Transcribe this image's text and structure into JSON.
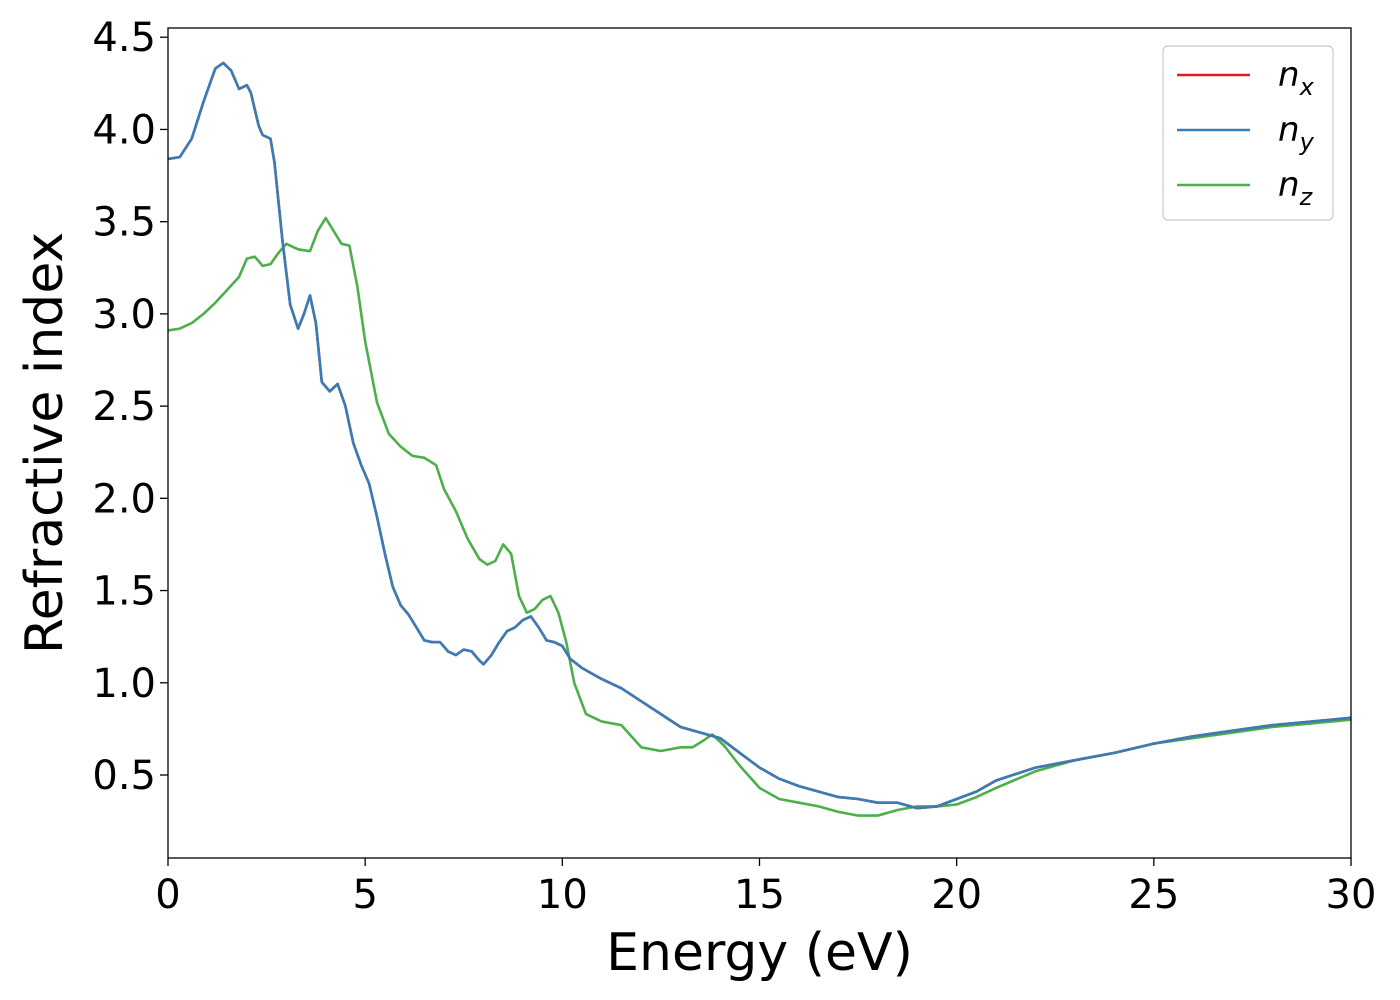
{
  "chart_data": {
    "type": "line",
    "title": "",
    "xlabel": "Energy (eV)",
    "ylabel": "Refractive index",
    "xlim": [
      0,
      30
    ],
    "ylim": [
      0.05,
      4.55
    ],
    "xticks": [
      0,
      5,
      10,
      15,
      20,
      25,
      30
    ],
    "xtick_labels": [
      "0",
      "5",
      "10",
      "15",
      "20",
      "25",
      "30"
    ],
    "yticks": [
      0.5,
      1.0,
      1.5,
      2.0,
      2.5,
      3.0,
      3.5,
      4.0,
      4.5
    ],
    "ytick_labels": [
      "0.5",
      "1.0",
      "1.5",
      "2.0",
      "2.5",
      "3.0",
      "3.5",
      "4.0",
      "4.5"
    ],
    "grid": false,
    "legend_position": "top-right",
    "series": [
      {
        "name": "n_x",
        "symbol": "n",
        "subscript": "x",
        "color": "#e41a1c",
        "x": [
          0,
          0.3,
          0.6,
          0.9,
          1.2,
          1.4,
          1.6,
          1.8,
          2.0,
          2.1,
          2.3,
          2.4,
          2.6,
          2.7,
          2.9,
          3.1,
          3.3,
          3.45,
          3.6,
          3.75,
          3.9,
          4.1,
          4.3,
          4.5,
          4.7,
          4.9,
          5.1,
          5.3,
          5.5,
          5.7,
          5.9,
          6.1,
          6.3,
          6.5,
          6.7,
          6.9,
          7.1,
          7.3,
          7.5,
          7.7,
          7.9,
          8.0,
          8.2,
          8.4,
          8.6,
          8.8,
          9.0,
          9.2,
          9.4,
          9.6,
          9.8,
          10.0,
          10.2,
          10.5,
          11.0,
          11.5,
          12.0,
          12.5,
          13.0,
          13.5,
          14.0,
          14.5,
          15.0,
          15.5,
          16.0,
          16.5,
          17.0,
          17.5,
          18.0,
          18.5,
          19.0,
          19.5,
          20.0,
          20.5,
          21.0,
          22.0,
          23.0,
          24.0,
          25.0,
          26.0,
          27.0,
          28.0,
          29.0,
          30.0
        ],
        "values": [
          3.84,
          3.85,
          3.95,
          4.15,
          4.33,
          4.36,
          4.32,
          4.22,
          4.24,
          4.2,
          4.02,
          3.97,
          3.95,
          3.82,
          3.4,
          3.05,
          2.92,
          3.0,
          3.1,
          2.95,
          2.63,
          2.58,
          2.62,
          2.5,
          2.3,
          2.18,
          2.08,
          1.9,
          1.7,
          1.52,
          1.42,
          1.37,
          1.3,
          1.23,
          1.22,
          1.22,
          1.17,
          1.15,
          1.18,
          1.17,
          1.12,
          1.1,
          1.15,
          1.22,
          1.28,
          1.3,
          1.34,
          1.36,
          1.3,
          1.23,
          1.22,
          1.2,
          1.13,
          1.08,
          1.02,
          0.97,
          0.9,
          0.83,
          0.76,
          0.73,
          0.7,
          0.62,
          0.54,
          0.48,
          0.44,
          0.41,
          0.38,
          0.37,
          0.35,
          0.35,
          0.32,
          0.33,
          0.37,
          0.41,
          0.47,
          0.54,
          0.58,
          0.62,
          0.67,
          0.71,
          0.74,
          0.77,
          0.79,
          0.81
        ]
      },
      {
        "name": "n_y",
        "symbol": "n",
        "subscript": "y",
        "color": "#377eb8",
        "x": [
          0,
          0.3,
          0.6,
          0.9,
          1.2,
          1.4,
          1.6,
          1.8,
          2.0,
          2.1,
          2.3,
          2.4,
          2.6,
          2.7,
          2.9,
          3.1,
          3.3,
          3.45,
          3.6,
          3.75,
          3.9,
          4.1,
          4.3,
          4.5,
          4.7,
          4.9,
          5.1,
          5.3,
          5.5,
          5.7,
          5.9,
          6.1,
          6.3,
          6.5,
          6.7,
          6.9,
          7.1,
          7.3,
          7.5,
          7.7,
          7.9,
          8.0,
          8.2,
          8.4,
          8.6,
          8.8,
          9.0,
          9.2,
          9.4,
          9.6,
          9.8,
          10.0,
          10.2,
          10.5,
          11.0,
          11.5,
          12.0,
          12.5,
          13.0,
          13.5,
          14.0,
          14.5,
          15.0,
          15.5,
          16.0,
          16.5,
          17.0,
          17.5,
          18.0,
          18.5,
          19.0,
          19.5,
          20.0,
          20.5,
          21.0,
          22.0,
          23.0,
          24.0,
          25.0,
          26.0,
          27.0,
          28.0,
          29.0,
          30.0
        ],
        "values": [
          3.84,
          3.85,
          3.95,
          4.15,
          4.33,
          4.36,
          4.32,
          4.22,
          4.24,
          4.2,
          4.02,
          3.97,
          3.95,
          3.82,
          3.4,
          3.05,
          2.92,
          3.0,
          3.1,
          2.95,
          2.63,
          2.58,
          2.62,
          2.5,
          2.3,
          2.18,
          2.08,
          1.9,
          1.7,
          1.52,
          1.42,
          1.37,
          1.3,
          1.23,
          1.22,
          1.22,
          1.17,
          1.15,
          1.18,
          1.17,
          1.12,
          1.1,
          1.15,
          1.22,
          1.28,
          1.3,
          1.34,
          1.36,
          1.3,
          1.23,
          1.22,
          1.2,
          1.13,
          1.08,
          1.02,
          0.97,
          0.9,
          0.83,
          0.76,
          0.73,
          0.7,
          0.62,
          0.54,
          0.48,
          0.44,
          0.41,
          0.38,
          0.37,
          0.35,
          0.35,
          0.32,
          0.33,
          0.37,
          0.41,
          0.47,
          0.54,
          0.58,
          0.62,
          0.67,
          0.71,
          0.74,
          0.77,
          0.79,
          0.81
        ]
      },
      {
        "name": "n_z",
        "symbol": "n",
        "subscript": "z",
        "color": "#4daf4a",
        "x": [
          0,
          0.3,
          0.6,
          0.9,
          1.2,
          1.5,
          1.8,
          2.0,
          2.2,
          2.4,
          2.6,
          2.8,
          3.0,
          3.3,
          3.6,
          3.8,
          4.0,
          4.2,
          4.4,
          4.6,
          4.8,
          5.0,
          5.3,
          5.6,
          5.9,
          6.2,
          6.5,
          6.8,
          7.0,
          7.3,
          7.6,
          7.9,
          8.1,
          8.3,
          8.5,
          8.7,
          8.9,
          9.1,
          9.3,
          9.5,
          9.7,
          9.9,
          10.1,
          10.3,
          10.6,
          11.0,
          11.5,
          12.0,
          12.5,
          13.0,
          13.3,
          13.6,
          13.8,
          14.1,
          14.5,
          15.0,
          15.5,
          16.0,
          16.5,
          17.0,
          17.5,
          18.0,
          18.5,
          19.0,
          19.5,
          20.0,
          20.5,
          21.0,
          22.0,
          23.0,
          24.0,
          25.0,
          26.0,
          27.0,
          28.0,
          29.0,
          30.0
        ],
        "values": [
          2.91,
          2.92,
          2.95,
          3.0,
          3.06,
          3.13,
          3.2,
          3.3,
          3.31,
          3.26,
          3.27,
          3.33,
          3.38,
          3.35,
          3.34,
          3.45,
          3.52,
          3.45,
          3.38,
          3.37,
          3.15,
          2.85,
          2.52,
          2.35,
          2.28,
          2.23,
          2.22,
          2.18,
          2.05,
          1.93,
          1.78,
          1.67,
          1.64,
          1.66,
          1.75,
          1.7,
          1.47,
          1.38,
          1.4,
          1.45,
          1.47,
          1.38,
          1.22,
          1.0,
          0.83,
          0.79,
          0.77,
          0.65,
          0.63,
          0.65,
          0.65,
          0.69,
          0.72,
          0.66,
          0.55,
          0.43,
          0.37,
          0.35,
          0.33,
          0.3,
          0.28,
          0.28,
          0.31,
          0.33,
          0.33,
          0.34,
          0.38,
          0.43,
          0.52,
          0.58,
          0.62,
          0.67,
          0.7,
          0.73,
          0.76,
          0.78,
          0.8
        ]
      }
    ]
  }
}
